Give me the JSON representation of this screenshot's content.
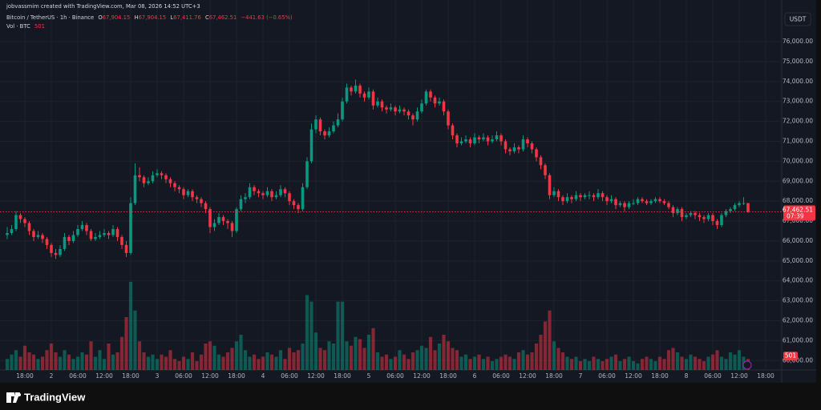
{
  "chart_data": {
    "type": "candlestick",
    "credit": "jobvassmim created with TradingView.com, Mar 08, 2026 14:52 UTC+3",
    "symbol": "Bitcoin / TetherUS · 1h · Binance",
    "ohlc_keys": [
      "O",
      "H",
      "L",
      "C"
    ],
    "last_labels": [
      "67,904.15",
      "67,904.15",
      "67,411.76",
      "67,462.51"
    ],
    "change": "−441.63 (−0.65%)",
    "volume_title": "Vol · BTC",
    "currency": "USDT",
    "countdown": "07:39",
    "brand": "TradingView",
    "up_color": "#089981",
    "down_color": "#f23645",
    "grid": true,
    "ylim": [
      59530,
      77690
    ],
    "yticks": [
      {
        "value": 60000,
        "label": "60,000.00"
      },
      {
        "value": 61000,
        "label": "61,000.00"
      },
      {
        "value": 62000,
        "label": "62,000.00"
      },
      {
        "value": 63000,
        "label": "63,000.00"
      },
      {
        "value": 64000,
        "label": "64,000.00"
      },
      {
        "value": 65000,
        "label": "65,000.00"
      },
      {
        "value": 66000,
        "label": "66,000.00"
      },
      {
        "value": 67000,
        "label": "67,000.00"
      },
      {
        "value": 68000,
        "label": "68,000.00"
      },
      {
        "value": 69000,
        "label": "69,000.00"
      },
      {
        "value": 70000,
        "label": "70,000.00"
      },
      {
        "value": 71000,
        "label": "71,000.00"
      },
      {
        "value": 72000,
        "label": "72,000.00"
      },
      {
        "value": 73000,
        "label": "73,000.00"
      },
      {
        "value": 74000,
        "label": "74,000.00"
      },
      {
        "value": 75000,
        "label": "75,000.00"
      },
      {
        "value": 76000,
        "label": "76,000.00"
      }
    ],
    "xticks": [
      {
        "value": 4,
        "label": "18:00"
      },
      {
        "value": 10,
        "label": "2"
      },
      {
        "value": 16,
        "label": "06:00"
      },
      {
        "value": 22,
        "label": "12:00"
      },
      {
        "value": 28,
        "label": "18:00"
      },
      {
        "value": 34,
        "label": "3"
      },
      {
        "value": 40,
        "label": "06:00"
      },
      {
        "value": 46,
        "label": "12:00"
      },
      {
        "value": 52,
        "label": "18:00"
      },
      {
        "value": 58,
        "label": "4"
      },
      {
        "value": 64,
        "label": "06:00"
      },
      {
        "value": 70,
        "label": "12:00"
      },
      {
        "value": 76,
        "label": "18:00"
      },
      {
        "value": 82,
        "label": "5"
      },
      {
        "value": 88,
        "label": "06:00"
      },
      {
        "value": 94,
        "label": "12:00"
      },
      {
        "value": 100,
        "label": "18:00"
      },
      {
        "value": 106,
        "label": "6"
      },
      {
        "value": 112,
        "label": "06:00"
      },
      {
        "value": 118,
        "label": "12:00"
      },
      {
        "value": 124,
        "label": "18:00"
      },
      {
        "value": 130,
        "label": "7"
      },
      {
        "value": 136,
        "label": "06:00"
      },
      {
        "value": 142,
        "label": "12:00"
      },
      {
        "value": 148,
        "label": "18:00"
      },
      {
        "value": 154,
        "label": "8"
      },
      {
        "value": 160,
        "label": "06:00"
      },
      {
        "value": 166,
        "label": "12:00"
      },
      {
        "value": 172,
        "label": "18:00"
      }
    ],
    "ohlc": [
      [
        66300,
        66700,
        66100,
        66400
      ],
      [
        66400,
        66800,
        66300,
        66600
      ],
      [
        66600,
        67500,
        66500,
        67300
      ],
      [
        67300,
        67400,
        66900,
        67100
      ],
      [
        67100,
        67200,
        66700,
        66900
      ],
      [
        66900,
        67000,
        66300,
        66500
      ],
      [
        66500,
        66600,
        66000,
        66200
      ],
      [
        66200,
        66500,
        66100,
        66300
      ],
      [
        66300,
        66400,
        65900,
        66100
      ],
      [
        66100,
        66200,
        65600,
        65800
      ],
      [
        65800,
        65900,
        65200,
        65400
      ],
      [
        65400,
        65600,
        65100,
        65300
      ],
      [
        65300,
        65800,
        65200,
        65600
      ],
      [
        65600,
        66400,
        65500,
        66200
      ],
      [
        66200,
        66300,
        65800,
        66000
      ],
      [
        66000,
        66500,
        65900,
        66300
      ],
      [
        66300,
        66800,
        66200,
        66600
      ],
      [
        66600,
        67000,
        66500,
        66800
      ],
      [
        66800,
        66900,
        66300,
        66500
      ],
      [
        66500,
        66600,
        66000,
        66100
      ],
      [
        66100,
        66400,
        66000,
        66200
      ],
      [
        66200,
        66500,
        66100,
        66300
      ],
      [
        66300,
        66600,
        66200,
        66400
      ],
      [
        66400,
        66500,
        66100,
        66300
      ],
      [
        66300,
        66800,
        66200,
        66600
      ],
      [
        66600,
        66700,
        66000,
        66200
      ],
      [
        66200,
        66300,
        65600,
        65800
      ],
      [
        65800,
        66000,
        65200,
        65400
      ],
      [
        65400,
        68200,
        65300,
        67900
      ],
      [
        67900,
        69900,
        67800,
        69300
      ],
      [
        69300,
        69700,
        69000,
        69200
      ],
      [
        69200,
        69300,
        68700,
        68900
      ],
      [
        68900,
        69200,
        68800,
        69000
      ],
      [
        69000,
        69500,
        68900,
        69300
      ],
      [
        69300,
        69600,
        69200,
        69400
      ],
      [
        69400,
        69500,
        69100,
        69300
      ],
      [
        69300,
        69400,
        68900,
        69100
      ],
      [
        69100,
        69200,
        68700,
        68900
      ],
      [
        68900,
        69000,
        68500,
        68700
      ],
      [
        68700,
        68800,
        68400,
        68600
      ],
      [
        68600,
        68700,
        68100,
        68300
      ],
      [
        68300,
        68600,
        68200,
        68500
      ],
      [
        68500,
        68600,
        68000,
        68200
      ],
      [
        68200,
        68300,
        67900,
        68100
      ],
      [
        68100,
        68200,
        67700,
        67900
      ],
      [
        67900,
        68000,
        67400,
        67600
      ],
      [
        67600,
        67700,
        66400,
        66700
      ],
      [
        66700,
        67100,
        66500,
        66900
      ],
      [
        66900,
        67400,
        66800,
        67200
      ],
      [
        67200,
        67300,
        66800,
        67000
      ],
      [
        67000,
        67100,
        66600,
        66900
      ],
      [
        66900,
        67000,
        66200,
        66500
      ],
      [
        66500,
        67700,
        66400,
        67600
      ],
      [
        67600,
        68300,
        67500,
        68100
      ],
      [
        68100,
        68400,
        67900,
        68200
      ],
      [
        68200,
        68900,
        68100,
        68700
      ],
      [
        68700,
        68800,
        68300,
        68500
      ],
      [
        68500,
        68600,
        68200,
        68400
      ],
      [
        68400,
        68500,
        68100,
        68300
      ],
      [
        68300,
        68700,
        68200,
        68500
      ],
      [
        68500,
        68600,
        68000,
        68200
      ],
      [
        68200,
        68500,
        68100,
        68300
      ],
      [
        68300,
        68800,
        68200,
        68600
      ],
      [
        68600,
        68700,
        68200,
        68400
      ],
      [
        68400,
        68500,
        67800,
        68000
      ],
      [
        68000,
        68100,
        67600,
        67800
      ],
      [
        67800,
        67900,
        67400,
        67600
      ],
      [
        67600,
        68900,
        67500,
        68700
      ],
      [
        68700,
        70200,
        68600,
        70000
      ],
      [
        70000,
        71900,
        69900,
        71600
      ],
      [
        71600,
        72300,
        71400,
        72100
      ],
      [
        72100,
        72200,
        71300,
        71500
      ],
      [
        71500,
        71600,
        71100,
        71300
      ],
      [
        71300,
        71700,
        71200,
        71500
      ],
      [
        71500,
        72000,
        71400,
        71800
      ],
      [
        71800,
        72400,
        71700,
        72100
      ],
      [
        72100,
        73200,
        72000,
        73000
      ],
      [
        73000,
        73900,
        72900,
        73700
      ],
      [
        73700,
        73800,
        73300,
        73500
      ],
      [
        73500,
        74100,
        73400,
        73800
      ],
      [
        73800,
        73900,
        73200,
        73400
      ],
      [
        73400,
        73500,
        73000,
        73200
      ],
      [
        73200,
        73700,
        73100,
        73500
      ],
      [
        73500,
        73600,
        72600,
        72800
      ],
      [
        72800,
        73200,
        72700,
        73000
      ],
      [
        73000,
        73100,
        72500,
        72700
      ],
      [
        72700,
        72800,
        72400,
        72600
      ],
      [
        72600,
        72900,
        72500,
        72700
      ],
      [
        72700,
        72800,
        72300,
        72500
      ],
      [
        72500,
        72800,
        72400,
        72600
      ],
      [
        72600,
        72700,
        72300,
        72500
      ],
      [
        72500,
        72600,
        72100,
        72300
      ],
      [
        72300,
        72400,
        71800,
        72100
      ],
      [
        72100,
        72700,
        72000,
        72500
      ],
      [
        72500,
        73100,
        72400,
        72900
      ],
      [
        72900,
        73600,
        72800,
        73500
      ],
      [
        73500,
        73600,
        73000,
        73200
      ],
      [
        73200,
        73300,
        72700,
        72900
      ],
      [
        72900,
        73200,
        72800,
        73000
      ],
      [
        73000,
        73100,
        72300,
        72500
      ],
      [
        72500,
        72600,
        71600,
        71800
      ],
      [
        71800,
        71900,
        71100,
        71300
      ],
      [
        71300,
        71400,
        70700,
        70900
      ],
      [
        70900,
        71200,
        70800,
        71000
      ],
      [
        71000,
        71300,
        70900,
        71100
      ],
      [
        71100,
        71200,
        70700,
        70900
      ],
      [
        70900,
        71400,
        70800,
        71200
      ],
      [
        71200,
        71300,
        70900,
        71100
      ],
      [
        71100,
        71400,
        71000,
        71200
      ],
      [
        71200,
        71300,
        70800,
        71000
      ],
      [
        71000,
        71300,
        70900,
        71100
      ],
      [
        71100,
        71500,
        71000,
        71300
      ],
      [
        71300,
        71400,
        70800,
        71000
      ],
      [
        71000,
        71100,
        70400,
        70600
      ],
      [
        70600,
        70700,
        70300,
        70500
      ],
      [
        70500,
        70900,
        70400,
        70700
      ],
      [
        70700,
        70800,
        70400,
        70600
      ],
      [
        70600,
        71300,
        70500,
        71100
      ],
      [
        71100,
        71200,
        70700,
        70900
      ],
      [
        70900,
        71000,
        70400,
        70600
      ],
      [
        70600,
        70700,
        70000,
        70200
      ],
      [
        70200,
        70300,
        69600,
        69800
      ],
      [
        69800,
        69900,
        69100,
        69300
      ],
      [
        69300,
        69400,
        68100,
        68300
      ],
      [
        68300,
        68700,
        68200,
        68500
      ],
      [
        68500,
        68600,
        68000,
        68200
      ],
      [
        68200,
        68300,
        67800,
        68000
      ],
      [
        68000,
        68400,
        67900,
        68200
      ],
      [
        68200,
        68300,
        67900,
        68100
      ],
      [
        68100,
        68500,
        68000,
        68300
      ],
      [
        68300,
        68400,
        68000,
        68200
      ],
      [
        68200,
        68400,
        68100,
        68300
      ],
      [
        68300,
        68500,
        68100,
        68300
      ],
      [
        68300,
        68400,
        68000,
        68200
      ],
      [
        68200,
        68600,
        68100,
        68400
      ],
      [
        68400,
        68500,
        68000,
        68200
      ],
      [
        68200,
        68300,
        67800,
        68000
      ],
      [
        68000,
        68300,
        67900,
        68100
      ],
      [
        68100,
        68200,
        67600,
        67800
      ],
      [
        67800,
        68000,
        67700,
        67900
      ],
      [
        67900,
        68000,
        67500,
        67700
      ],
      [
        67700,
        68000,
        67600,
        67900
      ],
      [
        67900,
        68100,
        67800,
        67900
      ],
      [
        67900,
        68200,
        67800,
        68100
      ],
      [
        68100,
        68200,
        67900,
        68000
      ],
      [
        68000,
        68100,
        67800,
        67900
      ],
      [
        67900,
        68100,
        67800,
        68000
      ],
      [
        68000,
        68200,
        67900,
        68100
      ],
      [
        68100,
        68200,
        67900,
        68000
      ],
      [
        68000,
        68100,
        67800,
        67900
      ],
      [
        67900,
        68000,
        67600,
        67700
      ],
      [
        67700,
        67800,
        67200,
        67400
      ],
      [
        67400,
        67700,
        67300,
        67600
      ],
      [
        67600,
        67700,
        67000,
        67200
      ],
      [
        67200,
        67400,
        67100,
        67300
      ],
      [
        67300,
        67500,
        67200,
        67400
      ],
      [
        67400,
        67500,
        67100,
        67300
      ],
      [
        67300,
        67400,
        67000,
        67200
      ],
      [
        67200,
        67300,
        66900,
        67100
      ],
      [
        67100,
        67400,
        67000,
        67300
      ],
      [
        67300,
        67400,
        66800,
        67000
      ],
      [
        67000,
        67100,
        66600,
        66800
      ],
      [
        66800,
        67400,
        66700,
        67300
      ],
      [
        67300,
        67600,
        67200,
        67500
      ],
      [
        67500,
        67700,
        67400,
        67600
      ],
      [
        67600,
        67900,
        67500,
        67800
      ],
      [
        67800,
        68000,
        67700,
        67900
      ],
      [
        67900,
        68200,
        67800,
        67904.15
      ],
      [
        67904.15,
        67904.15,
        67411.76,
        67462.51
      ]
    ],
    "volume": [
      500,
      700,
      900,
      600,
      1100,
      800,
      700,
      500,
      600,
      900,
      1200,
      800,
      600,
      900,
      700,
      500,
      600,
      800,
      700,
      1300,
      600,
      900,
      500,
      1200,
      700,
      800,
      1500,
      2400,
      4000,
      2700,
      1300,
      800,
      600,
      700,
      500,
      700,
      600,
      900,
      500,
      400,
      600,
      500,
      800,
      400,
      700,
      1200,
      1300,
      1100,
      700,
      600,
      800,
      1000,
      1300,
      1600,
      900,
      600,
      700,
      500,
      600,
      800,
      700,
      600,
      900,
      500,
      1000,
      800,
      900,
      1200,
      3400,
      3100,
      1700,
      1000,
      900,
      1300,
      1200,
      3100,
      3100,
      1300,
      1100,
      1500,
      1400,
      1000,
      1600,
      1900,
      800,
      600,
      700,
      500,
      600,
      900,
      700,
      500,
      800,
      900,
      1100,
      1000,
      1500,
      900,
      1200,
      1600,
      1300,
      1000,
      900,
      600,
      700,
      500,
      600,
      700,
      500,
      600,
      400,
      500,
      600,
      700,
      600,
      500,
      800,
      900,
      700,
      800,
      1200,
      1600,
      2200,
      2700,
      1300,
      1000,
      800,
      600,
      500,
      600,
      400,
      500,
      400,
      600,
      500,
      400,
      500,
      600,
      700,
      400,
      500,
      600,
      400,
      300,
      500,
      600,
      500,
      400,
      600,
      500,
      900,
      1000,
      800,
      600,
      500,
      700,
      600,
      500,
      400,
      600,
      700,
      900,
      600,
      500,
      800,
      700,
      900,
      600,
      501
    ]
  }
}
